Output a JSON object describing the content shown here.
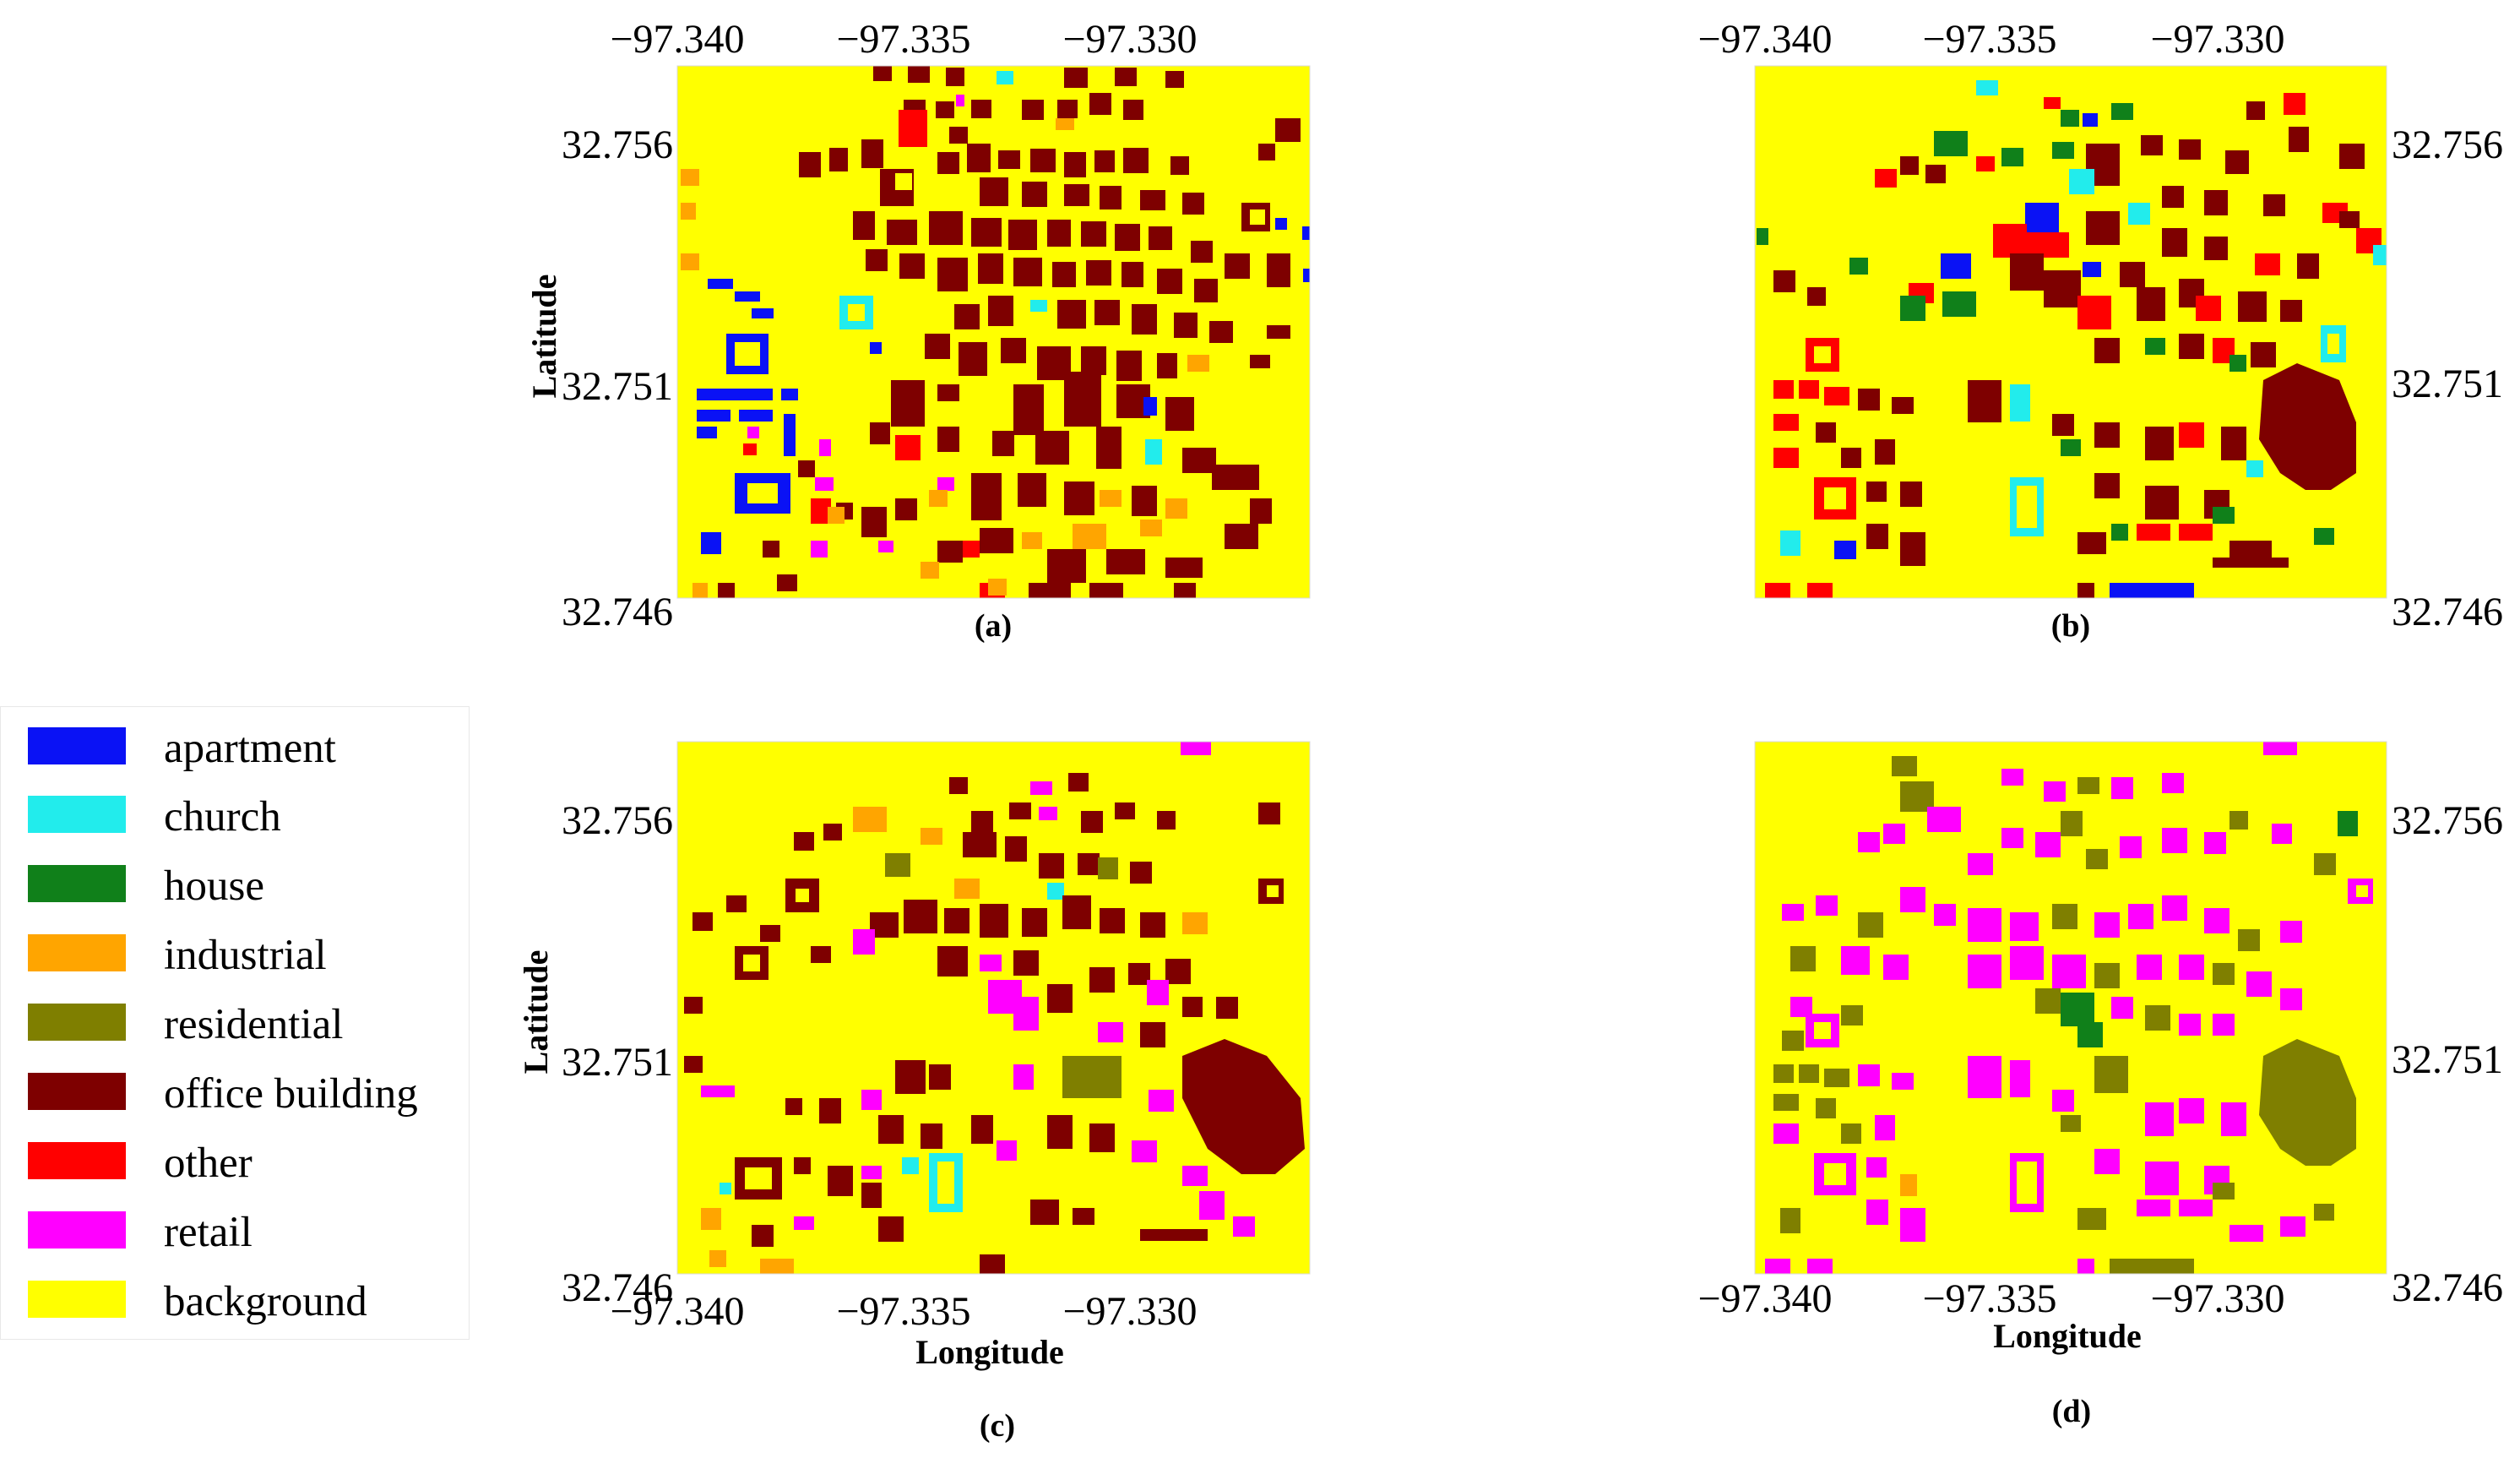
{
  "colors": {
    "apartment": "#0a12f5",
    "church": "#22ecec",
    "house": "#10801a",
    "industrial": "#ffa500",
    "residential": "#7f7f00",
    "office building": "#7e0000",
    "other": "#ff0000",
    "retail": "#ff00ff",
    "background": "#ffff00"
  },
  "legend": {
    "items": [
      {
        "label": "apartment",
        "color": "#0a12f5"
      },
      {
        "label": "church",
        "color": "#22ecec"
      },
      {
        "label": "house",
        "color": "#10801a"
      },
      {
        "label": "industrial",
        "color": "#ffa500"
      },
      {
        "label": "residential",
        "color": "#7f7f00"
      },
      {
        "label": "office building",
        "color": "#7e0000"
      },
      {
        "label": "other",
        "color": "#ff0000"
      },
      {
        "label": "retail",
        "color": "#ff00ff"
      },
      {
        "label": "background",
        "color": "#ffff00"
      }
    ]
  },
  "axes": {
    "lon_ticks": [
      "−97.340",
      "−97.335",
      "−97.330"
    ],
    "lat_ticks": [
      "32.756",
      "32.751",
      "32.746"
    ],
    "xlabel": "Longitude",
    "ylabel": "Latitude"
  },
  "panels": [
    {
      "id": "a",
      "caption": "(a)"
    },
    {
      "id": "b",
      "caption": "(b)"
    },
    {
      "id": "c",
      "caption": "(c)"
    },
    {
      "id": "d",
      "caption": "(d)"
    }
  ]
}
